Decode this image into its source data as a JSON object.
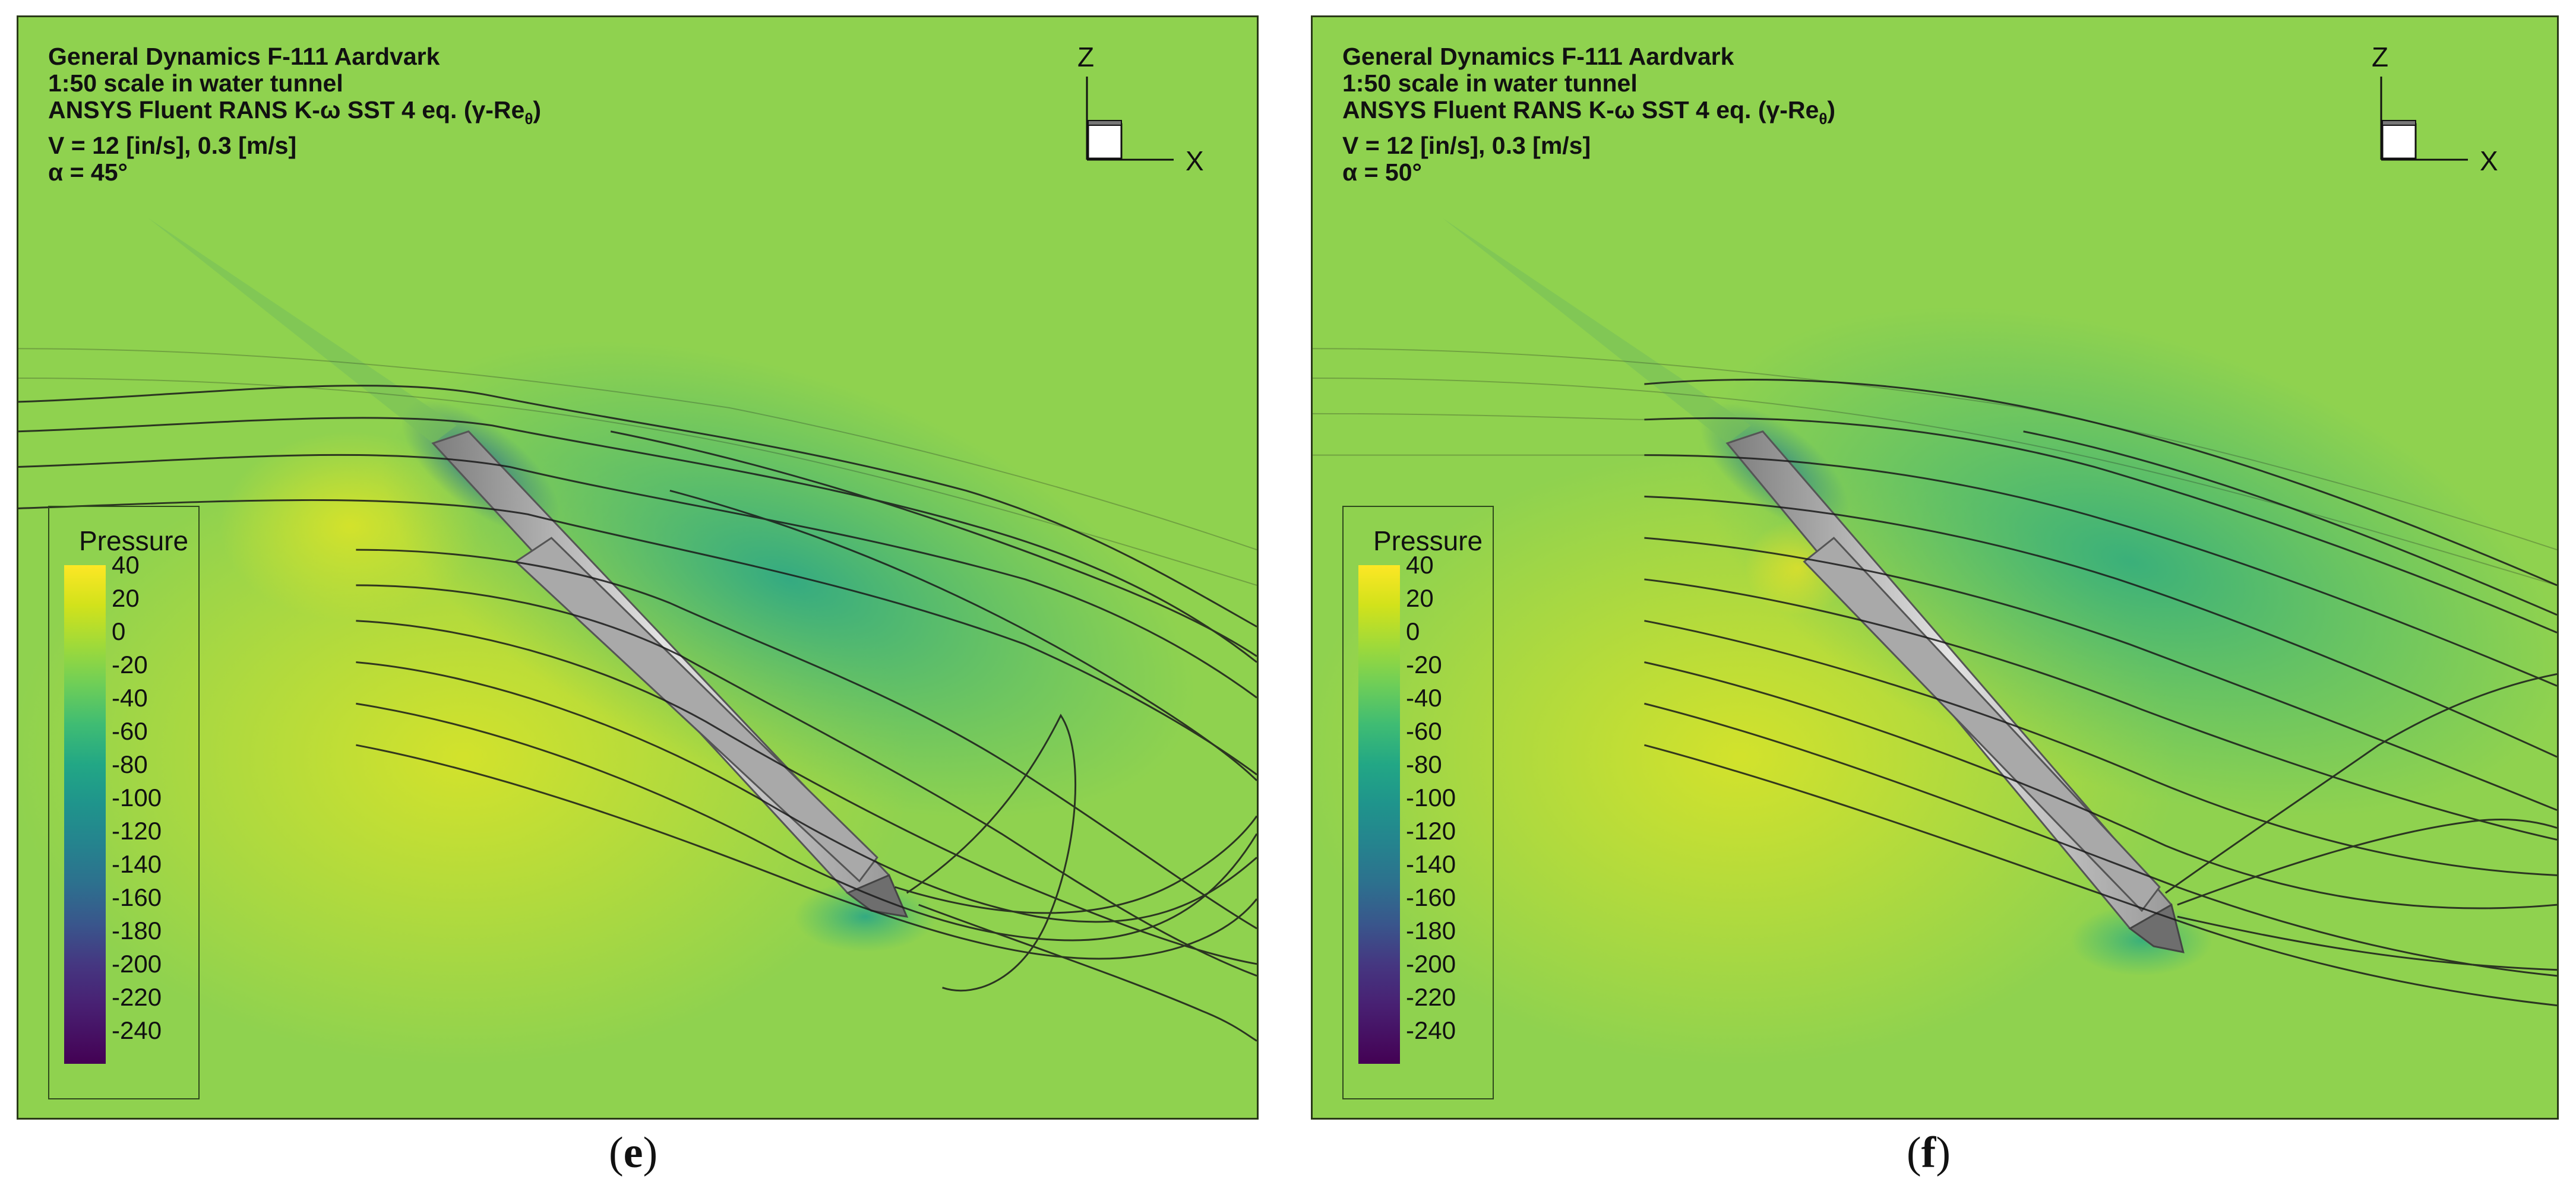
{
  "panels": [
    {
      "id": "e",
      "title_lines": {
        "aircraft": "General Dynamics F-111 Aardvark",
        "scale": "1:50 scale in water tunnel",
        "solver_prefix": "ANSYS Fluent RANS K-ω SST 4 eq. (γ-Re",
        "solver_sub": "θ",
        "solver_suffix": ")",
        "velocity": "V = 12 [in/s], 0.3 [m/s]",
        "alpha": "α = 45°"
      },
      "axes": {
        "z": "Z",
        "x": "X"
      },
      "legend": {
        "title": "Pressure",
        "ticks": [
          "40",
          "20",
          "0",
          "-20",
          "-40",
          "-60",
          "-80",
          "-100",
          "-120",
          "-140",
          "-160",
          "-180",
          "-200",
          "-220",
          "-240"
        ]
      },
      "caption": "e"
    },
    {
      "id": "f",
      "title_lines": {
        "aircraft": "General Dynamics F-111 Aardvark",
        "scale": "1:50 scale in water tunnel",
        "solver_prefix": "ANSYS Fluent RANS K-ω SST 4 eq. (γ-Re",
        "solver_sub": "θ",
        "solver_suffix": ")",
        "velocity": "V = 12 [in/s], 0.3 [m/s]",
        "alpha": "α = 50°"
      },
      "axes": {
        "z": "Z",
        "x": "X"
      },
      "legend": {
        "title": "Pressure",
        "ticks": [
          "40",
          "20",
          "0",
          "-20",
          "-40",
          "-60",
          "-80",
          "-100",
          "-120",
          "-140",
          "-160",
          "-180",
          "-200",
          "-220",
          "-240"
        ]
      },
      "caption": "f"
    }
  ],
  "colors": {
    "field_bg": "#8fd24f",
    "high_pressure": "#d6e32a",
    "low_pressure": "#3fb776",
    "streamline": "#1a1a1a",
    "aircraft": "#b9b9b9"
  }
}
